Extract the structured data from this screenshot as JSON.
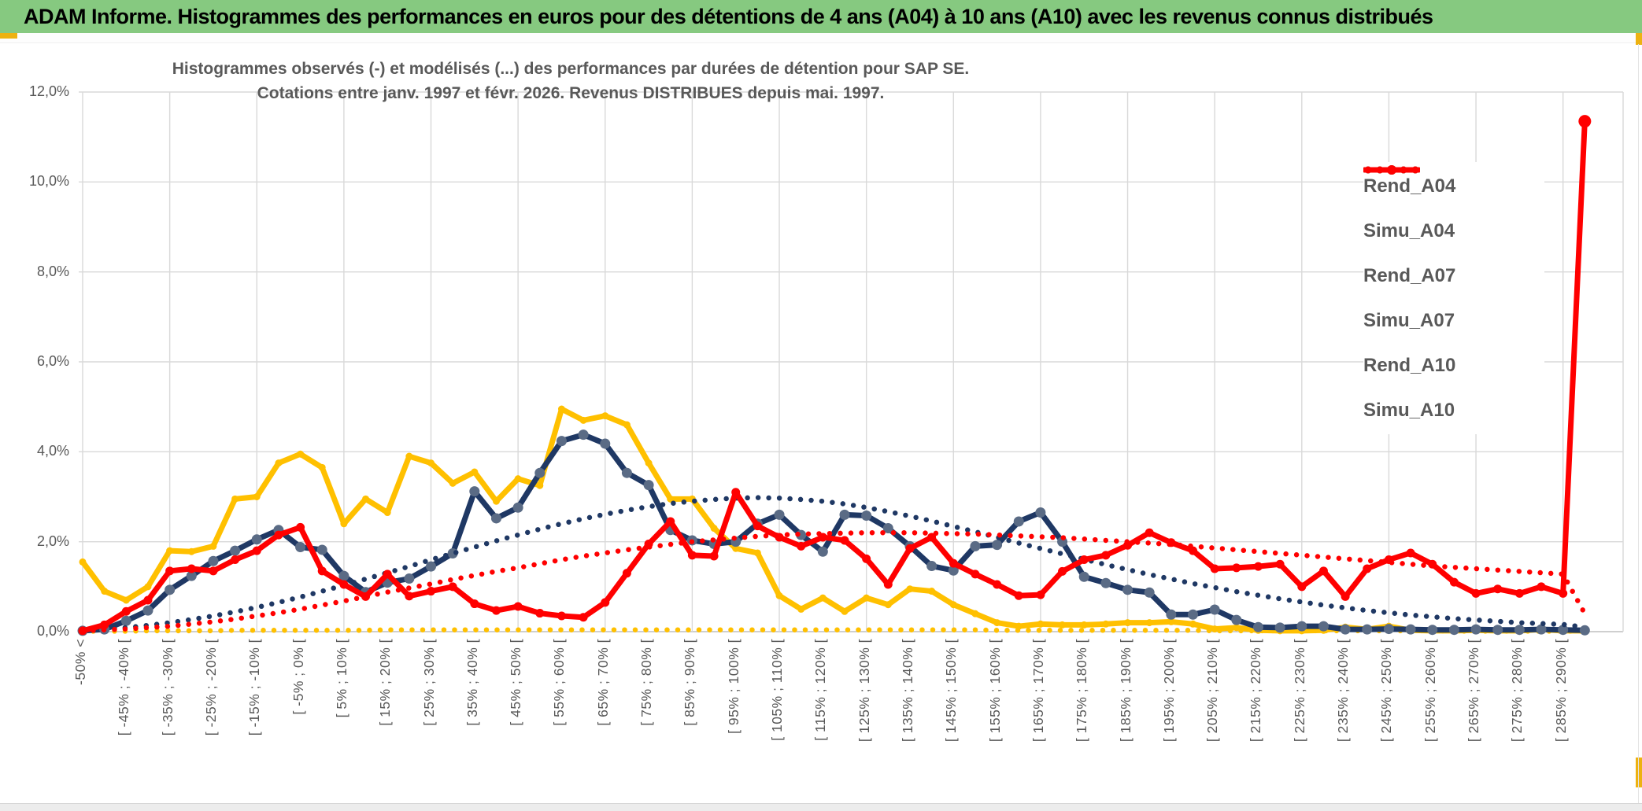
{
  "window": {
    "title": "ADAM Informe. Histogrammes des performances en euros pour des détentions de 4 ans (A04) à 10 ans (A10) avec les revenus connus distribués"
  },
  "colors": {
    "title_bg": "#86C980",
    "accent_gold": "#EDB211",
    "gold": "#FFC000",
    "navy": "#1F3864",
    "navy_marker": "#5A6B85",
    "red": "#FF0000",
    "grid": "#D9D9D9",
    "axis_line": "#BFBFBF",
    "text": "#595959"
  },
  "chart_data": {
    "type": "line",
    "title_line1": "Histogrammes observés (-) et modélisés (...) des performances par durées de détention pour SAP SE.",
    "title_line2": "Cotations entre janv. 1997 et févr. 2026. Revenus DISTRIBUES depuis mai. 1997.",
    "y_unit": "%",
    "ylim": [
      0,
      12
    ],
    "y_tick_step": 2,
    "y_tick_labels": [
      "0,0%",
      "2,0%",
      "4,0%",
      "6,0%",
      "8,0%",
      "10,0%",
      "12,0%"
    ],
    "grid": "on",
    "legend_position": "right-inside",
    "n_bins": 70,
    "x_label_every": 2,
    "x_gridline_every": 4,
    "x_tick_labels": [
      "-50% <",
      "[ -45% ; -40% [",
      "[ -35% ; -30% [",
      "[ -25% ; -20% [",
      "[ -15% ; -10% [",
      "[ -5% ; 0% [",
      "[ 5% ; 10% [",
      "[ 15% ; 20% [",
      "[ 25% ; 30% [",
      "[ 35% ; 40% [",
      "[ 45% ; 50% [",
      "[ 55% ; 60% [",
      "[ 65% ; 70% [",
      "[ 75% ; 80% [",
      "[ 85% ; 90% [",
      "[ 95% ; 100% [",
      "[ 105% ; 110% [",
      "[ 115% ; 120% [",
      "[ 125% ; 130% [",
      "[ 135% ; 140% [",
      "[ 145% ; 150% [",
      "[ 155% ; 160% [",
      "[ 165% ; 170% [",
      "[ 175% ; 180% [",
      "[ 185% ; 190% [",
      "[ 195% ; 200% [",
      "[ 205% ; 210% [",
      "[ 215% ; 220% [",
      "[ 225% ; 230% [",
      "[ 235% ; 240% [",
      "[ 245% ; 250% [",
      "[ 255% ; 260% [",
      "[ 265% ; 270% [",
      "[ 275% ; 280% [",
      "[ 285% ; 290% ["
    ],
    "series": [
      {
        "name": "Rend_A04",
        "style": "solid",
        "color_key": "gold",
        "marker_color_key": "gold",
        "values": [
          1.55,
          0.9,
          0.7,
          1.0,
          1.8,
          1.78,
          1.9,
          2.95,
          3.0,
          3.75,
          3.95,
          3.65,
          2.4,
          2.95,
          2.65,
          3.9,
          3.75,
          3.3,
          3.55,
          2.9,
          3.4,
          3.25,
          4.95,
          4.7,
          4.8,
          4.6,
          3.75,
          2.95,
          2.95,
          2.3,
          1.85,
          1.75,
          0.8,
          0.5,
          0.75,
          0.45,
          0.75,
          0.6,
          0.95,
          0.9,
          0.6,
          0.4,
          0.2,
          0.12,
          0.17,
          0.15,
          0.15,
          0.17,
          0.2,
          0.2,
          0.22,
          0.17,
          0.06,
          0.09,
          0.03,
          0.02,
          0.02,
          0.03,
          0.1,
          0.05,
          0.12,
          0.03,
          0.02,
          0.02,
          0.03,
          0.02,
          0.02,
          0.05,
          0.02,
          0.02
        ]
      },
      {
        "name": "Simu_A04",
        "style": "dotted",
        "color_key": "gold",
        "values": [
          0.01,
          0.01,
          0.01,
          0.02,
          0.02,
          0.02,
          0.02,
          0.03,
          0.03,
          0.03,
          0.03,
          0.03,
          0.03,
          0.03,
          0.04,
          0.04,
          0.04,
          0.04,
          0.04,
          0.04,
          0.04,
          0.04,
          0.04,
          0.04,
          0.04,
          0.04,
          0.04,
          0.04,
          0.04,
          0.04,
          0.04,
          0.04,
          0.04,
          0.04,
          0.04,
          0.04,
          0.04,
          0.04,
          0.04,
          0.04,
          0.04,
          0.04,
          0.03,
          0.03,
          0.03,
          0.03,
          0.03,
          0.03,
          0.03,
          0.03,
          0.03,
          0.03,
          0.02,
          0.02,
          0.02,
          0.02,
          0.02,
          0.02,
          0.02,
          0.02,
          0.02,
          0.02,
          0.02,
          0.01,
          0.01,
          0.01,
          0.01,
          0.01,
          0.01,
          0.01
        ]
      },
      {
        "name": "Rend_A07",
        "style": "solid",
        "color_key": "navy",
        "marker_color_key": "navy_marker",
        "values": [
          0.02,
          0.05,
          0.24,
          0.47,
          0.93,
          1.24,
          1.57,
          1.8,
          2.05,
          2.26,
          1.88,
          1.82,
          1.24,
          0.88,
          1.09,
          1.18,
          1.45,
          1.74,
          3.12,
          2.52,
          2.76,
          3.53,
          4.24,
          4.38,
          4.18,
          3.53,
          3.26,
          2.26,
          2.03,
          1.95,
          2.0,
          2.4,
          2.6,
          2.15,
          1.78,
          2.6,
          2.58,
          2.3,
          1.9,
          1.46,
          1.36,
          1.9,
          1.93,
          2.45,
          2.65,
          2.0,
          1.22,
          1.08,
          0.93,
          0.87,
          0.38,
          0.38,
          0.49,
          0.26,
          0.1,
          0.09,
          0.12,
          0.12,
          0.05,
          0.05,
          0.06,
          0.05,
          0.04,
          0.04,
          0.05,
          0.04,
          0.04,
          0.05,
          0.04,
          0.03
        ]
      },
      {
        "name": "Simu_A07",
        "style": "dotted",
        "color_key": "navy",
        "values": [
          0.02,
          0.05,
          0.09,
          0.14,
          0.2,
          0.27,
          0.35,
          0.44,
          0.54,
          0.65,
          0.77,
          0.9,
          1.03,
          1.17,
          1.31,
          1.45,
          1.6,
          1.74,
          1.88,
          2.02,
          2.15,
          2.28,
          2.4,
          2.51,
          2.61,
          2.7,
          2.78,
          2.85,
          2.9,
          2.94,
          2.97,
          2.98,
          2.97,
          2.94,
          2.9,
          2.84,
          2.76,
          2.67,
          2.57,
          2.46,
          2.34,
          2.22,
          2.1,
          1.97,
          1.85,
          1.73,
          1.61,
          1.49,
          1.38,
          1.27,
          1.17,
          1.07,
          0.98,
          0.89,
          0.81,
          0.73,
          0.66,
          0.59,
          0.53,
          0.47,
          0.42,
          0.37,
          0.33,
          0.29,
          0.26,
          0.23,
          0.2,
          0.18,
          0.16,
          0.1
        ]
      },
      {
        "name": "Rend_A10",
        "style": "solid",
        "color_key": "red",
        "marker_color_key": "red",
        "values": [
          0.02,
          0.15,
          0.45,
          0.7,
          1.35,
          1.4,
          1.35,
          1.6,
          1.8,
          2.15,
          2.32,
          1.35,
          1.05,
          0.78,
          1.28,
          0.79,
          0.9,
          1.0,
          0.62,
          0.47,
          0.56,
          0.41,
          0.35,
          0.32,
          0.65,
          1.3,
          1.95,
          2.45,
          1.7,
          1.68,
          3.1,
          2.35,
          2.1,
          1.9,
          2.1,
          2.03,
          1.62,
          1.05,
          1.85,
          2.1,
          1.52,
          1.28,
          1.05,
          0.8,
          0.82,
          1.34,
          1.6,
          1.7,
          1.92,
          2.2,
          1.98,
          1.8,
          1.4,
          1.42,
          1.45,
          1.5,
          1.0,
          1.35,
          0.78,
          1.4,
          1.6,
          1.75,
          1.5,
          1.1,
          0.85,
          0.95,
          0.85,
          1.0,
          0.85,
          11.35
        ]
      },
      {
        "name": "Simu_A10",
        "style": "dotted",
        "color_key": "red",
        "values": [
          0.02,
          0.04,
          0.06,
          0.09,
          0.12,
          0.17,
          0.22,
          0.28,
          0.35,
          0.42,
          0.5,
          0.59,
          0.68,
          0.78,
          0.88,
          0.97,
          1.06,
          1.16,
          1.25,
          1.34,
          1.42,
          1.51,
          1.6,
          1.68,
          1.75,
          1.82,
          1.88,
          1.94,
          2.0,
          2.04,
          2.08,
          2.12,
          2.15,
          2.17,
          2.18,
          2.19,
          2.2,
          2.2,
          2.2,
          2.19,
          2.18,
          2.17,
          2.15,
          2.13,
          2.11,
          2.09,
          2.06,
          2.03,
          2.0,
          1.97,
          1.94,
          1.9,
          1.86,
          1.82,
          1.78,
          1.74,
          1.7,
          1.66,
          1.62,
          1.58,
          1.54,
          1.5,
          1.46,
          1.43,
          1.4,
          1.37,
          1.34,
          1.31,
          1.28,
          0.4
        ]
      }
    ]
  },
  "legend": {
    "items": [
      {
        "label": "Rend_A04"
      },
      {
        "label": "Simu_A04"
      },
      {
        "label": "Rend_A07"
      },
      {
        "label": "Simu_A07"
      },
      {
        "label": "Rend_A10"
      },
      {
        "label": "Simu_A10"
      }
    ]
  }
}
